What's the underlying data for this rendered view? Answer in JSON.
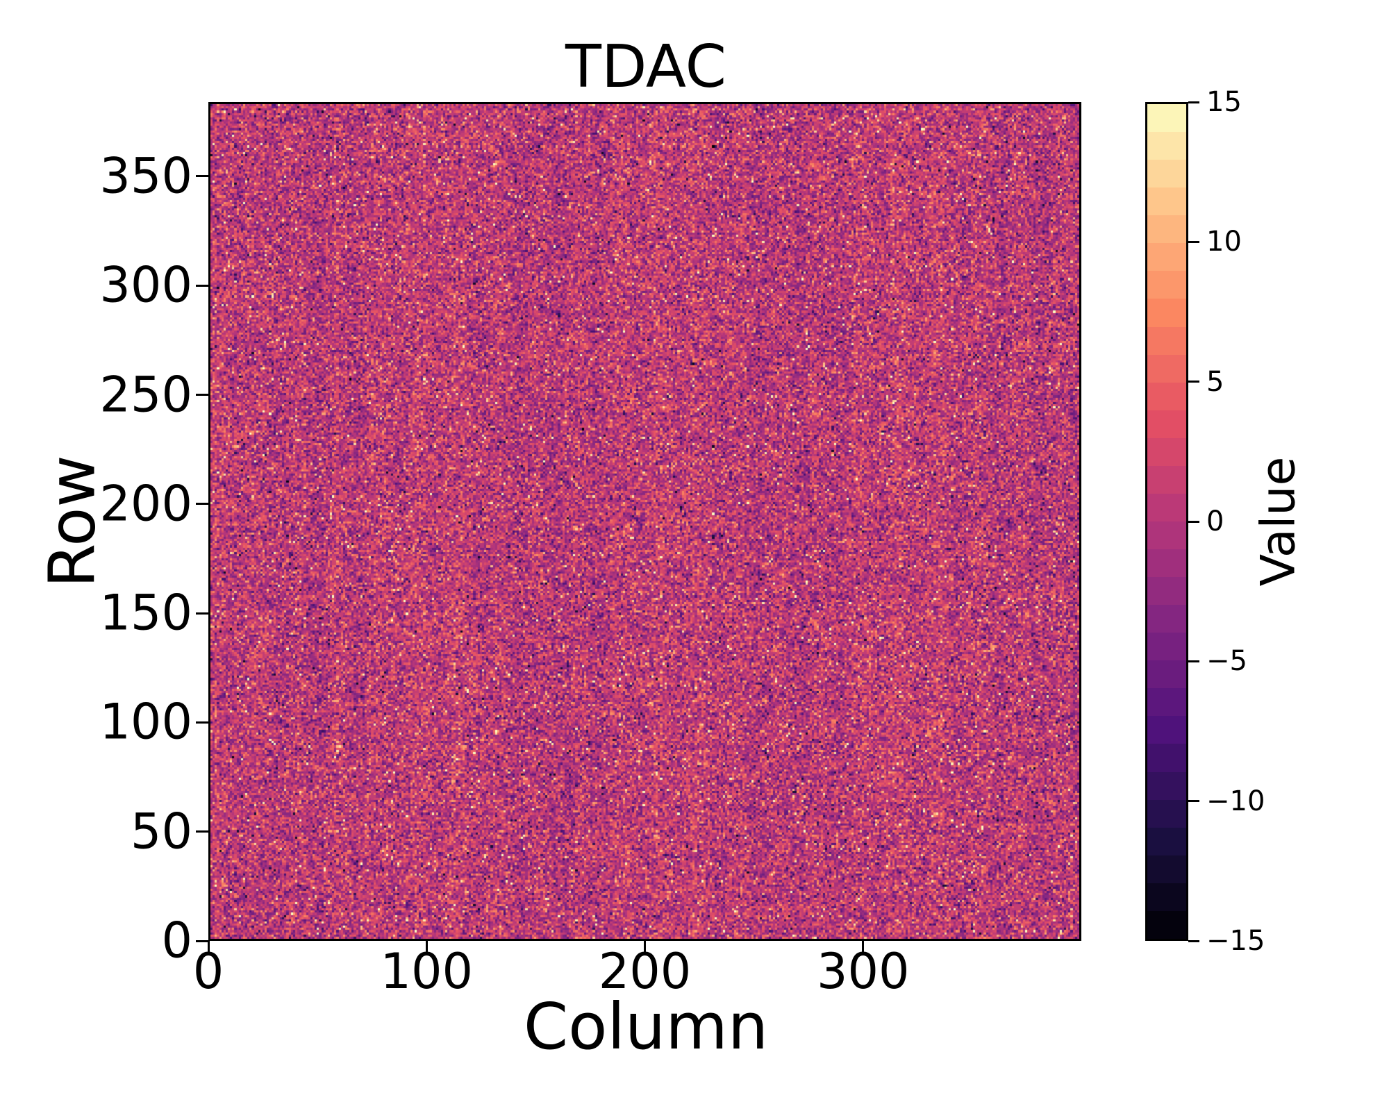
{
  "window": {
    "background": "#ffffff",
    "axis_color": "#000000",
    "text_color": "#000000"
  },
  "chart_data": {
    "type": "heatmap",
    "title": "TDAC",
    "xlabel": "Column",
    "ylabel": "Row",
    "colorbar_label": "Value",
    "n_cols": 400,
    "n_rows": 384,
    "xlim": [
      0,
      400
    ],
    "ylim": [
      0,
      384
    ],
    "vmin": -15,
    "vmax": 15,
    "x_ticks": [
      0,
      100,
      200,
      300
    ],
    "y_ticks": [
      0,
      50,
      100,
      150,
      200,
      250,
      300,
      350
    ],
    "colorbar_tick_values": [
      15,
      10,
      5,
      0,
      -5,
      -10,
      -15
    ],
    "colorbar_tick_labels": [
      "15",
      "10",
      "5",
      "0",
      "−5",
      "−10",
      "−15"
    ],
    "colorbar_discrete_bands": 30,
    "grid": false,
    "legend": null,
    "colormap": {
      "name": "magma",
      "anchors": [
        "#000004",
        "#1c1044",
        "#4f127b",
        "#812581",
        "#b5367a",
        "#e55064",
        "#fb8761",
        "#fec287",
        "#fcfdbf"
      ]
    },
    "data_summary": {
      "description": "per-pixel TDAC tuning values, integer random noise",
      "distribution": "gaussian-integer",
      "mean": 0.6,
      "std": 3.6,
      "bright_outlier_frac": 0.015,
      "bright_outlier_range": [
        9,
        15
      ],
      "dark_outlier_frac": 0.005,
      "dark_outlier_range": [
        -13,
        -6
      ],
      "column_banding_amp": 0.45,
      "clip": [
        -15,
        15
      ],
      "seed": 20240917
    }
  }
}
